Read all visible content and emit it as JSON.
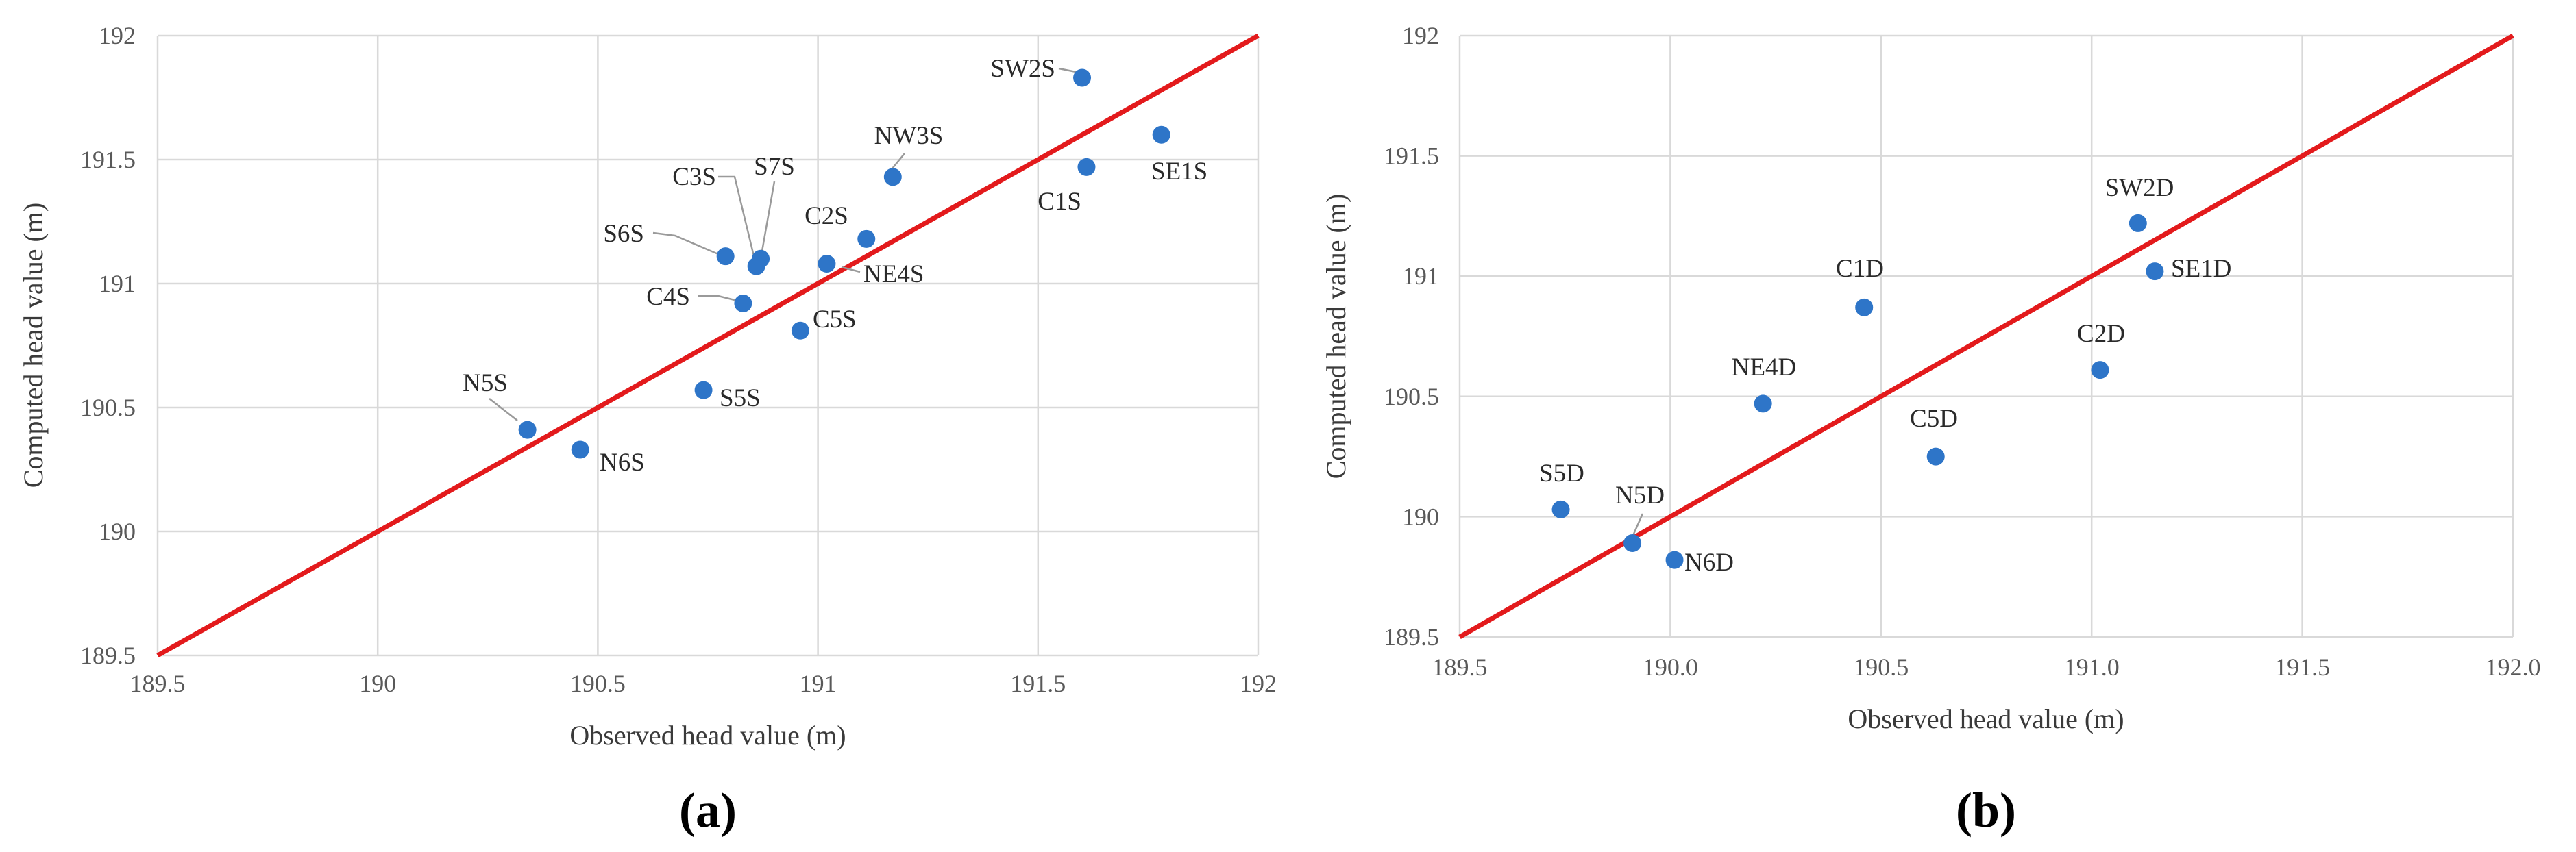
{
  "chart_data": [
    {
      "type": "scatter",
      "panel_label": "(a)",
      "xlabel": "Observed head value (m)",
      "ylabel": "Computed head value (m)",
      "xlim": [
        189.5,
        192
      ],
      "ylim": [
        189.5,
        192
      ],
      "xticks": [
        "189.5",
        "190",
        "190.5",
        "191",
        "191.5",
        "192"
      ],
      "yticks": [
        "189.5",
        "190",
        "190.5",
        "191",
        "191.5",
        "192"
      ],
      "grid": true,
      "reference_line": {
        "x": [
          189.5,
          192
        ],
        "y": [
          189.5,
          192
        ],
        "color": "#e31a1c"
      },
      "marker_color": "#2e75c8",
      "points": [
        {
          "label": "SW2S",
          "x": 191.6,
          "y": 191.83
        },
        {
          "label": "SE1S",
          "x": 191.78,
          "y": 191.6
        },
        {
          "label": "C1S",
          "x": 191.61,
          "y": 191.47
        },
        {
          "label": "NW3S",
          "x": 191.17,
          "y": 191.43
        },
        {
          "label": "C2S",
          "x": 191.11,
          "y": 191.18
        },
        {
          "label": "NE4S",
          "x": 191.02,
          "y": 191.08
        },
        {
          "label": "C3S",
          "x": 190.86,
          "y": 191.07
        },
        {
          "label": "S7S",
          "x": 190.87,
          "y": 191.1
        },
        {
          "label": "S6S",
          "x": 190.79,
          "y": 191.11
        },
        {
          "label": "C4S",
          "x": 190.83,
          "y": 190.92
        },
        {
          "label": "C5S",
          "x": 190.96,
          "y": 190.81
        },
        {
          "label": "S5S",
          "x": 190.74,
          "y": 190.57
        },
        {
          "label": "N5S",
          "x": 190.34,
          "y": 190.41
        },
        {
          "label": "N6S",
          "x": 190.46,
          "y": 190.33
        }
      ]
    },
    {
      "type": "scatter",
      "panel_label": "(b)",
      "xlabel": "Observed head value (m)",
      "ylabel": "Computed head value (m)",
      "xlim": [
        189.5,
        192.0
      ],
      "ylim": [
        189.5,
        192
      ],
      "xticks": [
        "189.5",
        "190.0",
        "190.5",
        "191.0",
        "191.5",
        "192.0"
      ],
      "yticks": [
        "189.5",
        "190",
        "190.5",
        "191",
        "191.5",
        "192"
      ],
      "grid": true,
      "reference_line": {
        "x": [
          189.5,
          192.0
        ],
        "y": [
          189.5,
          192
        ],
        "color": "#e31a1c"
      },
      "marker_color": "#2e75c8",
      "points": [
        {
          "label": "SW2D",
          "x": 191.11,
          "y": 191.22
        },
        {
          "label": "SE1D",
          "x": 191.15,
          "y": 191.02
        },
        {
          "label": "C1D",
          "x": 190.46,
          "y": 190.87
        },
        {
          "label": "C2D",
          "x": 191.02,
          "y": 190.61
        },
        {
          "label": "NE4D",
          "x": 190.22,
          "y": 190.47
        },
        {
          "label": "C5D",
          "x": 190.63,
          "y": 190.25
        },
        {
          "label": "S5D",
          "x": 189.74,
          "y": 190.03
        },
        {
          "label": "N5D",
          "x": 189.91,
          "y": 189.89
        },
        {
          "label": "N6D",
          "x": 190.01,
          "y": 189.82
        }
      ]
    }
  ]
}
